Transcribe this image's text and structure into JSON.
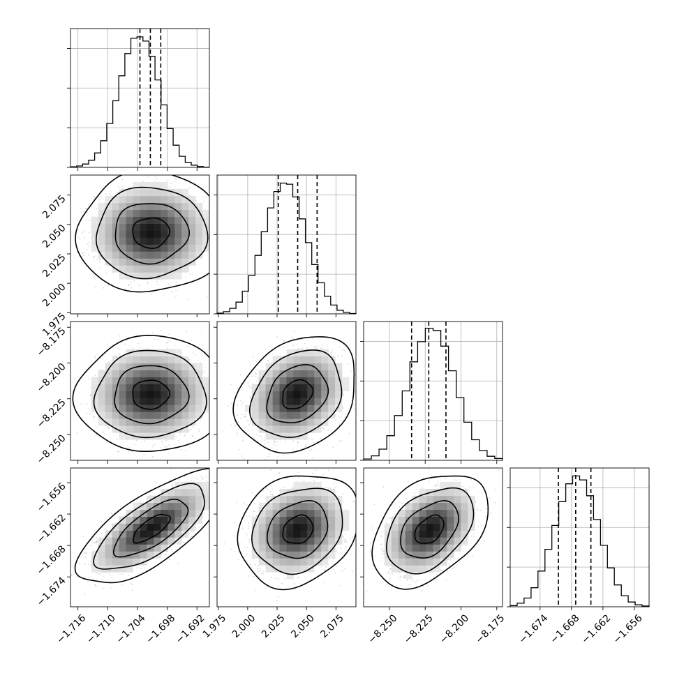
{
  "chart_data": {
    "type": "corner",
    "n_params": 4,
    "params": [
      {
        "range": [
          -1.7175,
          -1.6895
        ],
        "ticks": [
          -1.716,
          -1.71,
          -1.704,
          -1.698,
          -1.692
        ],
        "tick_labels": [
          "−1.716",
          "−1.710",
          "−1.704",
          "−1.698",
          "−1.692"
        ],
        "quantiles": [
          -1.7035,
          -1.7014,
          -1.6993
        ],
        "hist_counts": [
          0.2,
          0.5,
          1.2,
          2.6,
          5.2,
          9.6,
          15.8,
          24.0,
          33.0,
          41.0,
          46.5,
          47.0,
          45.5,
          40.0,
          31.5,
          22.5,
          14.0,
          8.0,
          4.0,
          1.8,
          0.8,
          0.3,
          0.1
        ],
        "hist_ylim": [
          0,
          50
        ]
      },
      {
        "range": [
          1.974,
          2.092
        ],
        "ticks": [
          1.975,
          2.0,
          2.025,
          2.05,
          2.075
        ],
        "tick_labels": [
          "1.975",
          "2.000",
          "2.025",
          "2.050",
          "2.075"
        ],
        "quantiles": [
          2.026,
          2.0425,
          2.059
        ],
        "hist_counts": [
          0.2,
          0.6,
          1.5,
          3.2,
          6.2,
          10.5,
          16.0,
          22.5,
          29.0,
          33.5,
          35.8,
          35.5,
          32.0,
          26.0,
          19.5,
          13.5,
          8.5,
          4.8,
          2.4,
          1.0,
          0.4,
          0.1
        ],
        "hist_ylim": [
          0,
          38
        ]
      },
      {
        "range": [
          -8.268,
          -8.171
        ],
        "ticks": [
          -8.25,
          -8.225,
          -8.2,
          -8.175
        ],
        "tick_labels": [
          "−8.250",
          "−8.225",
          "−8.200",
          "−8.175"
        ],
        "quantiles": [
          -8.2345,
          -8.2225,
          -8.2105
        ],
        "hist_counts": [
          0.3,
          1.0,
          2.5,
          5.5,
          10.0,
          15.5,
          22.0,
          26.5,
          29.5,
          29.0,
          25.5,
          20.0,
          14.0,
          8.5,
          4.6,
          2.2,
          0.9,
          0.4
        ],
        "hist_ylim": [
          0,
          31
        ]
      },
      {
        "range": [
          -1.6797,
          -1.6532
        ],
        "ticks": [
          -1.674,
          -1.668,
          -1.662,
          -1.656
        ],
        "tick_labels": [
          "−1.674",
          "−1.668",
          "−1.662",
          "−1.656"
        ],
        "quantiles": [
          -1.6705,
          -1.6672,
          -1.6643
        ],
        "hist_counts": [
          0.3,
          0.9,
          2.2,
          4.8,
          9.0,
          14.5,
          20.5,
          26.5,
          31.0,
          33.0,
          32.0,
          28.0,
          22.0,
          15.5,
          9.8,
          5.5,
          2.8,
          1.2,
          0.5,
          0.2
        ],
        "hist_ylim": [
          0,
          35
        ]
      }
    ],
    "pairs": [
      {
        "row": 1,
        "col": 0,
        "mean": [
          -1.7013,
          2.043
        ],
        "sd": [
          0.0055,
          0.019
        ],
        "rho": 0.02
      },
      {
        "row": 2,
        "col": 0,
        "mean": [
          -1.7014,
          -8.222
        ],
        "sd": [
          0.0055,
          0.015
        ],
        "rho": 0.02
      },
      {
        "row": 2,
        "col": 1,
        "mean": [
          2.042,
          -8.222
        ],
        "sd": [
          0.019,
          0.015
        ],
        "rho": 0.25
      },
      {
        "row": 3,
        "col": 0,
        "mean": [
          -1.7012,
          -1.6647
        ],
        "sd": [
          0.0055,
          0.004
        ],
        "rho": 0.72
      },
      {
        "row": 3,
        "col": 1,
        "mean": [
          2.0428,
          -1.665
        ],
        "sd": [
          0.019,
          0.004
        ],
        "rho": 0.2
      },
      {
        "row": 3,
        "col": 2,
        "mean": [
          -8.222,
          -1.665
        ],
        "sd": [
          0.015,
          0.004
        ],
        "rho": 0.4
      }
    ],
    "contour_levels_sigma": [
      0.5,
      1.0,
      1.5,
      2.0
    ],
    "grid": true,
    "colors": {
      "hist": "#000000",
      "contour": "#000000",
      "points": "#8c8c8c",
      "grid": "#b0b0b0"
    }
  }
}
